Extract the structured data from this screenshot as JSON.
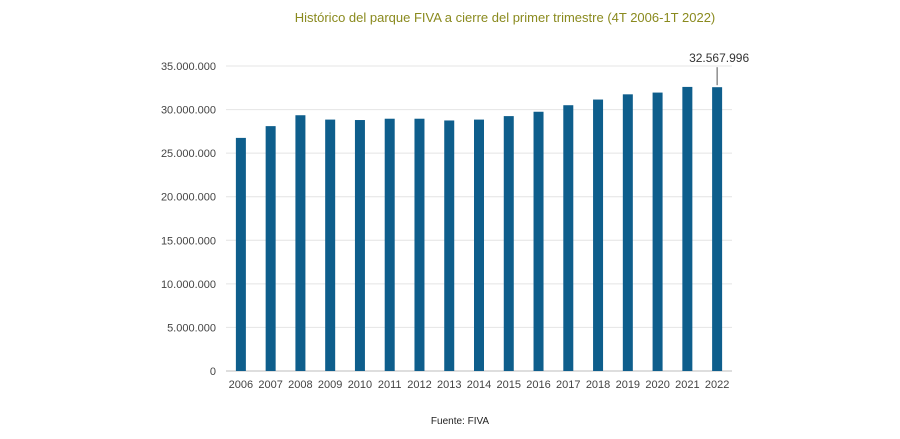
{
  "chart_data": {
    "type": "bar",
    "title": "Histórico del parque FIVA a cierre del primer trimestre (4T 2006-1T 2022)",
    "categories": [
      "2006",
      "2007",
      "2008",
      "2009",
      "2010",
      "2011",
      "2012",
      "2013",
      "2014",
      "2015",
      "2016",
      "2017",
      "2018",
      "2019",
      "2020",
      "2021",
      "2022"
    ],
    "values": [
      26750000,
      28100000,
      29350000,
      28850000,
      28800000,
      28950000,
      28950000,
      28750000,
      28850000,
      29250000,
      29750000,
      30500000,
      31150000,
      31750000,
      31950000,
      32600000,
      32567996
    ],
    "ylim": [
      0,
      35000000
    ],
    "yticks": [
      "0",
      "5.000.000",
      "10.000.000",
      "15.000.000",
      "20.000.000",
      "25.000.000",
      "30.000.000",
      "35.000.000"
    ],
    "ytick_values": [
      0,
      5000000,
      10000000,
      15000000,
      20000000,
      25000000,
      30000000,
      35000000
    ],
    "annotation": {
      "label": "32.567.996",
      "category": "2022"
    },
    "bar_color": "#0e5e8c",
    "grid": true,
    "source": "Fuente: FIVA"
  }
}
